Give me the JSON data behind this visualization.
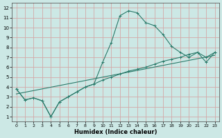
{
  "xlabel": "Humidex (Indice chaleur)",
  "xlim": [
    0,
    23
  ],
  "ylim": [
    1,
    12
  ],
  "xticks": [
    0,
    1,
    2,
    3,
    4,
    5,
    6,
    7,
    8,
    9,
    10,
    11,
    12,
    13,
    14,
    15,
    16,
    17,
    18,
    19,
    20,
    21,
    22,
    23
  ],
  "yticks": [
    1,
    2,
    3,
    4,
    5,
    6,
    7,
    8,
    9,
    10,
    11,
    12
  ],
  "bg_color": "#cce8e5",
  "grid_color": "#d4a8a8",
  "line_color": "#2a7a6a",
  "curve1_x": [
    0,
    1,
    2,
    3,
    4,
    5,
    6,
    7,
    8,
    9,
    10,
    11,
    12,
    13,
    14,
    15,
    16,
    17,
    18,
    19,
    20,
    21,
    22,
    23
  ],
  "curve1_y": [
    3.8,
    2.7,
    2.9,
    2.6,
    1.0,
    2.5,
    3.0,
    3.5,
    4.0,
    4.3,
    6.5,
    8.5,
    11.2,
    11.7,
    11.5,
    10.5,
    10.2,
    9.3,
    8.1,
    7.5,
    7.0,
    7.5,
    7.0,
    7.5
  ],
  "curve2_x": [
    0,
    1,
    2,
    3,
    4,
    5,
    6,
    7,
    8,
    9,
    10,
    11,
    12,
    13,
    14,
    15,
    16,
    17,
    18,
    19,
    20,
    21,
    22,
    23
  ],
  "curve2_y": [
    3.8,
    2.7,
    2.9,
    2.6,
    1.0,
    2.5,
    3.0,
    3.5,
    4.0,
    4.3,
    4.7,
    5.0,
    5.3,
    5.6,
    5.8,
    6.0,
    6.3,
    6.6,
    6.8,
    7.0,
    7.3,
    7.5,
    6.5,
    7.5
  ],
  "curve3_x": [
    0,
    23
  ],
  "curve3_y": [
    3.3,
    7.2
  ]
}
